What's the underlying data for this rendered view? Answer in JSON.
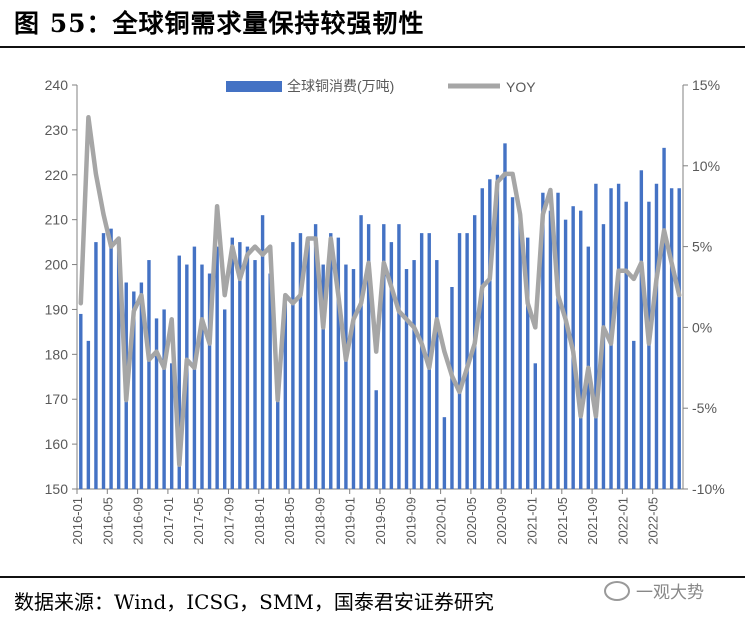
{
  "header": {
    "title": "图 55：全球铜需求量保持较强韧性"
  },
  "footer": {
    "source": "数据来源：Wind，ICSG，SMM，国泰君安证券研究",
    "watermark": "一观大势"
  },
  "chart_data": {
    "type": "bar+line",
    "title": "",
    "legend_placement": "top",
    "colors": {
      "bar": "#4472C4",
      "line": "#A6A6A6",
      "axis": "#808080",
      "text": "#595959"
    },
    "y_left": {
      "min": 150,
      "max": 240,
      "step": 10,
      "ticks": [
        "150",
        "160",
        "170",
        "180",
        "190",
        "200",
        "210",
        "220",
        "230",
        "240"
      ]
    },
    "y_right": {
      "min": -10,
      "max": 15,
      "step": 5,
      "ticks": [
        "-10%",
        "-5%",
        "0%",
        "5%",
        "10%",
        "15%"
      ]
    },
    "x_tick_labels": [
      "2016-01",
      "2016-05",
      "2016-09",
      "2017-01",
      "2017-05",
      "2017-09",
      "2018-01",
      "2018-05",
      "2018-09",
      "2019-01",
      "2019-05",
      "2019-09",
      "2020-01",
      "2020-05",
      "2020-09",
      "2021-01",
      "2021-05",
      "2021-09",
      "2022-01",
      "2022-05"
    ],
    "x_tick_step": 4,
    "months": [
      "2016-01",
      "2016-02",
      "2016-03",
      "2016-04",
      "2016-05",
      "2016-06",
      "2016-07",
      "2016-08",
      "2016-09",
      "2016-10",
      "2016-11",
      "2016-12",
      "2017-01",
      "2017-02",
      "2017-03",
      "2017-04",
      "2017-05",
      "2017-06",
      "2017-07",
      "2017-08",
      "2017-09",
      "2017-10",
      "2017-11",
      "2017-12",
      "2018-01",
      "2018-02",
      "2018-03",
      "2018-04",
      "2018-05",
      "2018-06",
      "2018-07",
      "2018-08",
      "2018-09",
      "2018-10",
      "2018-11",
      "2018-12",
      "2019-01",
      "2019-02",
      "2019-03",
      "2019-04",
      "2019-05",
      "2019-06",
      "2019-07",
      "2019-08",
      "2019-09",
      "2019-10",
      "2019-11",
      "2019-12",
      "2020-01",
      "2020-02",
      "2020-03",
      "2020-04",
      "2020-05",
      "2020-06",
      "2020-07",
      "2020-08",
      "2020-09",
      "2020-10",
      "2020-11",
      "2020-12",
      "2021-01",
      "2021-02",
      "2021-03",
      "2021-04",
      "2021-05",
      "2021-06",
      "2021-07",
      "2021-08",
      "2021-09",
      "2021-10",
      "2021-11",
      "2021-12",
      "2022-01",
      "2022-02",
      "2022-03",
      "2022-04",
      "2022-05",
      "2022-06",
      "2022-07",
      "2022-08"
    ],
    "series": [
      {
        "name": "全球铜消费(万吨)",
        "kind": "bar",
        "axis": "left",
        "values": [
          189,
          183,
          205,
          207,
          208,
          204,
          196,
          194,
          196,
          201,
          188,
          190,
          178,
          202,
          200,
          204,
          200,
          198,
          204,
          190,
          206,
          205,
          204,
          201,
          211,
          198,
          176,
          193,
          205,
          207,
          205,
          209,
          200,
          207,
          206,
          200,
          199,
          211,
          209,
          172,
          209,
          205,
          209,
          199,
          201,
          207,
          207,
          201,
          166,
          195,
          207,
          207,
          211,
          217,
          219,
          220,
          227,
          215,
          210,
          206,
          178,
          216,
          212,
          216,
          210,
          213,
          212,
          204,
          218,
          209,
          217,
          218,
          214,
          183,
          221,
          214,
          218,
          226,
          217,
          217
        ]
      },
      {
        "name": "YOY",
        "kind": "line",
        "axis": "right",
        "values": [
          1.5,
          13.0,
          9.5,
          7.0,
          5.0,
          5.5,
          -4.5,
          1.0,
          2.0,
          -2.0,
          -1.5,
          -2.5,
          0.5,
          -8.5,
          -2.0,
          -2.5,
          0.5,
          -1.0,
          7.5,
          2.0,
          5.0,
          3.0,
          4.5,
          5.0,
          4.5,
          5.0,
          -4.5,
          2.0,
          1.5,
          2.0,
          5.5,
          5.5,
          0.0,
          5.5,
          2.0,
          -2.0,
          0.5,
          1.5,
          4.0,
          -1.5,
          4.0,
          2.5,
          1.0,
          0.5,
          0.0,
          -1.0,
          -2.5,
          0.5,
          -1.5,
          -3.0,
          -4.0,
          -2.5,
          -1.0,
          2.5,
          3.0,
          9.0,
          9.5,
          9.5,
          7.0,
          1.5,
          0.0,
          7.0,
          8.5,
          2.0,
          0.5,
          -1.5,
          -5.5,
          -2.5,
          -5.5,
          0.0,
          -1.0,
          3.5,
          3.5,
          3.0,
          4.0,
          -1.0,
          3.0,
          6.0,
          4.0,
          2.0
        ]
      }
    ]
  }
}
